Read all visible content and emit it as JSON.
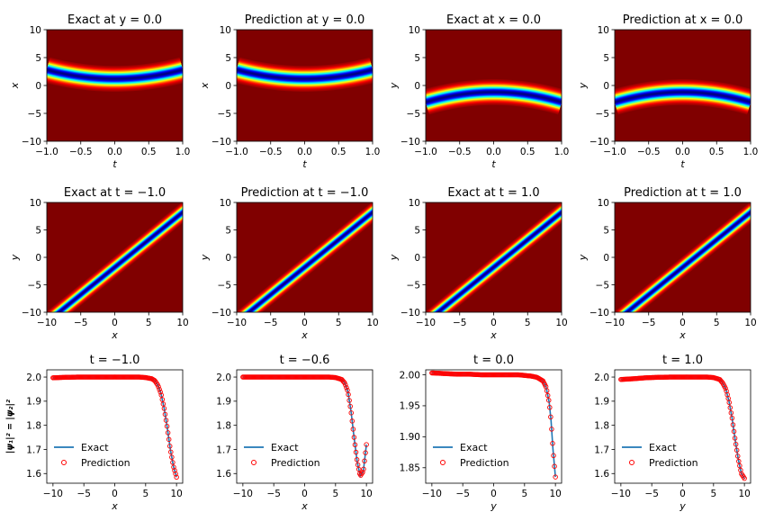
{
  "figure": {
    "description_free": true
  },
  "chart_data": [
    {
      "type": "heatmap",
      "title": "Exact at y = 0.0",
      "xlabel": "t",
      "ylabel": "x",
      "xlim": [
        -1.0,
        1.0
      ],
      "ylim": [
        -10,
        10
      ],
      "xticks": [
        "−1.0",
        "−0.5",
        "0.0",
        "0.5",
        "1.0"
      ],
      "yticks": [
        "−10",
        "−5",
        "0",
        "5",
        "10"
      ],
      "band": {
        "orientation": "curve-t",
        "center_at_0": 1.2,
        "center_at_edges": 2.8,
        "width": 4.6
      }
    },
    {
      "type": "heatmap",
      "title": "Prediction at y = 0.0",
      "xlabel": "t",
      "ylabel": "x",
      "xlim": [
        -1.0,
        1.0
      ],
      "ylim": [
        -10,
        10
      ],
      "xticks": [
        "−1.0",
        "−0.5",
        "0.0",
        "0.5",
        "1.0"
      ],
      "yticks": [
        "−10",
        "−5",
        "0",
        "5",
        "10"
      ],
      "band": {
        "orientation": "curve-t",
        "center_at_0": 1.2,
        "center_at_edges": 2.8,
        "width": 4.6
      }
    },
    {
      "type": "heatmap",
      "title": "Exact at x = 0.0",
      "xlabel": "t",
      "ylabel": "y",
      "xlim": [
        -1.0,
        1.0
      ],
      "ylim": [
        -10,
        10
      ],
      "xticks": [
        "−1.0",
        "−0.5",
        "0.0",
        "0.5",
        "1.0"
      ],
      "yticks": [
        "−10",
        "−5",
        "0",
        "5",
        "10"
      ],
      "band": {
        "orientation": "curve-t",
        "center_at_0": -1.2,
        "center_at_edges": -3.0,
        "width": 4.6
      }
    },
    {
      "type": "heatmap",
      "title": "Prediction at x = 0.0",
      "xlabel": "t",
      "ylabel": "y",
      "xlim": [
        -1.0,
        1.0
      ],
      "ylim": [
        -10,
        10
      ],
      "xticks": [
        "−1.0",
        "−0.5",
        "0.0",
        "0.5",
        "1.0"
      ],
      "yticks": [
        "−10",
        "−5",
        "0",
        "5",
        "10"
      ],
      "band": {
        "orientation": "curve-t",
        "center_at_0": -1.2,
        "center_at_edges": -3.0,
        "width": 4.6
      }
    },
    {
      "type": "heatmap",
      "title": "Exact at t = −1.0",
      "xlabel": "x",
      "ylabel": "y",
      "xlim": [
        -10,
        10
      ],
      "ylim": [
        -10,
        10
      ],
      "xticks": [
        "−10",
        "−5",
        "0",
        "5",
        "10"
      ],
      "yticks": [
        "−10",
        "−5",
        "0",
        "5",
        "10"
      ],
      "band": {
        "orientation": "diagonal",
        "slope": 1,
        "offset": -1.8,
        "width": 4.2
      }
    },
    {
      "type": "heatmap",
      "title": "Prediction at t = −1.0",
      "xlabel": "x",
      "ylabel": "y",
      "xlim": [
        -10,
        10
      ],
      "ylim": [
        -10,
        10
      ],
      "xticks": [
        "−10",
        "−5",
        "0",
        "5",
        "10"
      ],
      "yticks": [
        "−10",
        "−5",
        "0",
        "5",
        "10"
      ],
      "band": {
        "orientation": "diagonal",
        "slope": 1,
        "offset": -1.8,
        "width": 4.2
      }
    },
    {
      "type": "heatmap",
      "title": "Exact at t = 1.0",
      "xlabel": "x",
      "ylabel": "y",
      "xlim": [
        -10,
        10
      ],
      "ylim": [
        -10,
        10
      ],
      "xticks": [
        "−10",
        "−5",
        "0",
        "5",
        "10"
      ],
      "yticks": [
        "−10",
        "−5",
        "0",
        "5",
        "10"
      ],
      "band": {
        "orientation": "diagonal",
        "slope": 1,
        "offset": -1.8,
        "width": 4.2
      }
    },
    {
      "type": "heatmap",
      "title": "Prediction at t = 1.0",
      "xlabel": "x",
      "ylabel": "y",
      "xlim": [
        -10,
        10
      ],
      "ylim": [
        -10,
        10
      ],
      "xticks": [
        "−10",
        "−5",
        "0",
        "5",
        "10"
      ],
      "yticks": [
        "−10",
        "−5",
        "0",
        "5",
        "10"
      ],
      "band": {
        "orientation": "diagonal",
        "slope": 1,
        "offset": -1.8,
        "width": 4.2
      }
    },
    {
      "type": "line",
      "title": "t = −1.0",
      "xlabel": "x",
      "ylabel": "|ψ₁|² = |ψ₂|²",
      "xlim": [
        -11,
        11
      ],
      "ylim": [
        1.56,
        2.03
      ],
      "xticks": [
        "−10",
        "−5",
        "0",
        "5",
        "10"
      ],
      "yticks": [
        "1.6",
        "1.7",
        "1.8",
        "1.9",
        "2.0"
      ],
      "ytick_values": [
        1.6,
        1.7,
        1.8,
        1.9,
        2.0
      ],
      "legend": [
        "Exact",
        "Prediction"
      ],
      "curve": {
        "x": [
          -10,
          -8,
          -6,
          -4,
          -2,
          0,
          2,
          4,
          5,
          6,
          6.5,
          7,
          7.5,
          8,
          8.5,
          9,
          9.5,
          10
        ],
        "y": [
          1.997,
          1.999,
          2.0,
          2.0,
          2.0,
          2.0,
          2.0,
          2.0,
          1.998,
          1.993,
          1.985,
          1.965,
          1.93,
          1.87,
          1.79,
          1.7,
          1.63,
          1.585
        ]
      }
    },
    {
      "type": "line",
      "title": "t = −0.6",
      "xlabel": "x",
      "ylabel": "",
      "xlim": [
        -11,
        11
      ],
      "ylim": [
        1.56,
        2.03
      ],
      "xticks": [
        "−10",
        "−5",
        "0",
        "5",
        "10"
      ],
      "yticks": [
        "1.6",
        "1.7",
        "1.8",
        "1.9",
        "2.0"
      ],
      "ytick_values": [
        1.6,
        1.7,
        1.8,
        1.9,
        2.0
      ],
      "legend": [
        "Exact",
        "Prediction"
      ],
      "curve": {
        "x": [
          -10,
          -8,
          -6,
          -4,
          -2,
          0,
          2,
          4,
          5,
          6,
          6.5,
          7,
          7.5,
          8,
          8.5,
          9,
          9.5,
          10
        ],
        "y": [
          2.0,
          2.0,
          2.0,
          2.0,
          2.0,
          2.0,
          2.0,
          2.0,
          1.998,
          1.99,
          1.975,
          1.94,
          1.86,
          1.75,
          1.65,
          1.59,
          1.61,
          1.72
        ]
      }
    },
    {
      "type": "line",
      "title": "t = 0.0",
      "xlabel": "y",
      "ylabel": "",
      "xlim": [
        -11,
        11
      ],
      "ylim": [
        1.825,
        2.008
      ],
      "xticks": [
        "−10",
        "−5",
        "0",
        "5",
        "10"
      ],
      "yticks": [
        "1.85",
        "1.90",
        "1.95",
        "2.00"
      ],
      "ytick_values": [
        1.85,
        1.9,
        1.95,
        2.0
      ],
      "legend": [
        "Exact",
        "Prediction"
      ],
      "curve": {
        "x": [
          -10,
          -8,
          -6,
          -4,
          -2,
          0,
          2,
          4,
          6,
          7,
          8,
          8.5,
          9,
          9.3,
          9.6,
          10
        ],
        "y": [
          2.003,
          2.002,
          2.001,
          2.001,
          2.0,
          2.0,
          2.0,
          2.0,
          1.998,
          1.996,
          1.99,
          1.98,
          1.955,
          1.925,
          1.88,
          1.835
        ]
      }
    },
    {
      "type": "line",
      "title": "t = 1.0",
      "xlabel": "y",
      "ylabel": "",
      "xlim": [
        -11,
        11
      ],
      "ylim": [
        1.56,
        2.03
      ],
      "xticks": [
        "−10",
        "−5",
        "0",
        "5",
        "10"
      ],
      "yticks": [
        "1.6",
        "1.7",
        "1.8",
        "1.9",
        "2.0"
      ],
      "ytick_values": [
        1.6,
        1.7,
        1.8,
        1.9,
        2.0
      ],
      "legend": [
        "Exact",
        "Prediction"
      ],
      "curve": {
        "x": [
          -10,
          -8,
          -6,
          -4,
          -2,
          0,
          2,
          4,
          5,
          6,
          6.5,
          7,
          7.5,
          8,
          8.5,
          9,
          9.5,
          10
        ],
        "y": [
          1.99,
          1.993,
          1.997,
          1.999,
          2.0,
          2.0,
          2.0,
          2.0,
          1.998,
          1.99,
          1.975,
          1.95,
          1.9,
          1.83,
          1.74,
          1.66,
          1.6,
          1.58
        ]
      }
    }
  ],
  "colors": {
    "exact_line": "#1f77b4",
    "prediction_marker": "#ff0000"
  }
}
